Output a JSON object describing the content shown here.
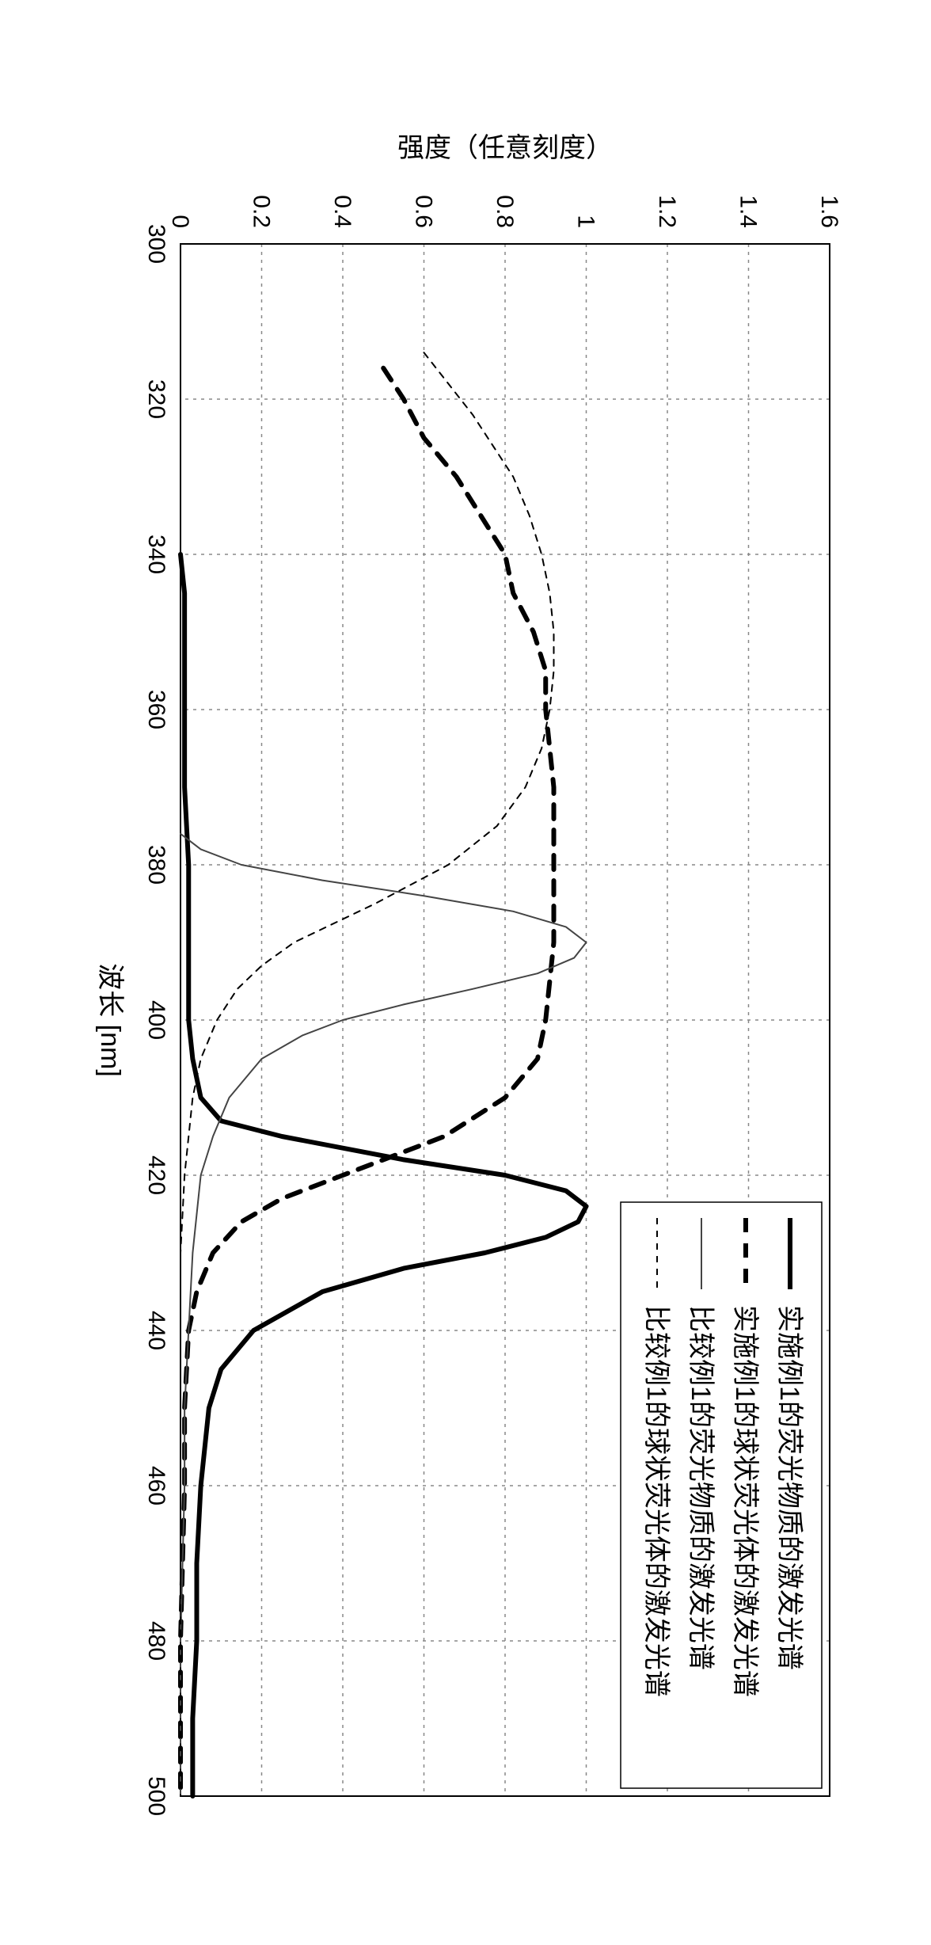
{
  "chart": {
    "type": "line",
    "xlabel": "波长 [nm]",
    "ylabel": "强度（任意刻度）",
    "xlim": [
      300,
      500
    ],
    "ylim": [
      0,
      1.6
    ],
    "xtick_step": 20,
    "ytick_step": 0.2,
    "yticks": [
      "0",
      "0.2",
      "0.4",
      "0.6",
      "0.8",
      "1",
      "1.2",
      "1.4",
      "1.6"
    ],
    "xticks": [
      "300",
      "320",
      "340",
      "360",
      "380",
      "400",
      "420",
      "440",
      "460",
      "480",
      "500"
    ],
    "background_color": "#ffffff",
    "grid_color": "#888888",
    "axis_color": "#000000",
    "label_fontsize": 34,
    "tick_fontsize": 30,
    "legend": {
      "position": "top-right",
      "items": [
        {
          "label": "实施例1的荧光物质的激发光谱",
          "color": "#000000",
          "width": 6,
          "dash": "none"
        },
        {
          "label": "实施例1的球状荧光体的激发光谱",
          "color": "#000000",
          "width": 6,
          "dash": "18,14"
        },
        {
          "label": "比较例1的荧光物质的激发光谱",
          "color": "#444444",
          "width": 2,
          "dash": "none"
        },
        {
          "label": "比较例1的球状荧光体的激发光谱",
          "color": "#000000",
          "width": 2,
          "dash": "8,8"
        }
      ]
    },
    "series": [
      {
        "name": "实施例1荧光物质",
        "color": "#000000",
        "width": 6,
        "dash": "none",
        "x": [
          340,
          345,
          350,
          360,
          370,
          380,
          390,
          400,
          405,
          410,
          413,
          415,
          418,
          420,
          422,
          424,
          426,
          428,
          430,
          432,
          435,
          440,
          445,
          450,
          460,
          470,
          480,
          490,
          500
        ],
        "y": [
          0.0,
          0.01,
          0.01,
          0.01,
          0.01,
          0.02,
          0.02,
          0.02,
          0.03,
          0.05,
          0.1,
          0.25,
          0.55,
          0.8,
          0.95,
          1.0,
          0.98,
          0.9,
          0.75,
          0.55,
          0.35,
          0.18,
          0.1,
          0.07,
          0.05,
          0.04,
          0.04,
          0.03,
          0.03
        ]
      },
      {
        "name": "实施例1球状荧光体",
        "color": "#000000",
        "width": 6,
        "dash": "18,14",
        "x": [
          316,
          320,
          325,
          330,
          335,
          340,
          345,
          350,
          355,
          360,
          365,
          370,
          375,
          380,
          385,
          390,
          395,
          400,
          405,
          410,
          415,
          420,
          423,
          426,
          430,
          435,
          440,
          450,
          460,
          480,
          500
        ],
        "y": [
          0.5,
          0.55,
          0.6,
          0.68,
          0.74,
          0.8,
          0.82,
          0.87,
          0.9,
          0.9,
          0.91,
          0.92,
          0.92,
          0.92,
          0.92,
          0.92,
          0.91,
          0.9,
          0.88,
          0.8,
          0.65,
          0.4,
          0.25,
          0.15,
          0.08,
          0.04,
          0.02,
          0.01,
          0.01,
          0.0,
          0.0
        ]
      },
      {
        "name": "比较例1荧光物质",
        "color": "#444444",
        "width": 2,
        "dash": "none",
        "x": [
          376,
          378,
          380,
          382,
          384,
          386,
          388,
          390,
          392,
          394,
          396,
          398,
          400,
          402,
          405,
          410,
          415,
          420,
          430,
          440,
          450,
          460,
          480,
          500
        ],
        "y": [
          0.0,
          0.05,
          0.15,
          0.35,
          0.6,
          0.82,
          0.95,
          1.0,
          0.97,
          0.88,
          0.72,
          0.55,
          0.4,
          0.3,
          0.2,
          0.12,
          0.08,
          0.05,
          0.03,
          0.02,
          0.01,
          0.01,
          0.0,
          0.0
        ]
      },
      {
        "name": "比较例1球状荧光体",
        "color": "#000000",
        "width": 2,
        "dash": "8,8",
        "x": [
          314,
          318,
          322,
          326,
          330,
          335,
          340,
          345,
          350,
          355,
          360,
          365,
          370,
          375,
          380,
          385,
          388,
          390,
          393,
          396,
          400,
          405,
          410,
          420,
          430,
          450,
          480,
          500
        ],
        "y": [
          0.6,
          0.66,
          0.72,
          0.77,
          0.82,
          0.86,
          0.89,
          0.91,
          0.92,
          0.92,
          0.91,
          0.89,
          0.85,
          0.78,
          0.66,
          0.48,
          0.36,
          0.28,
          0.2,
          0.14,
          0.09,
          0.05,
          0.03,
          0.01,
          0.0,
          0.0,
          0.0,
          0.0
        ]
      }
    ]
  }
}
